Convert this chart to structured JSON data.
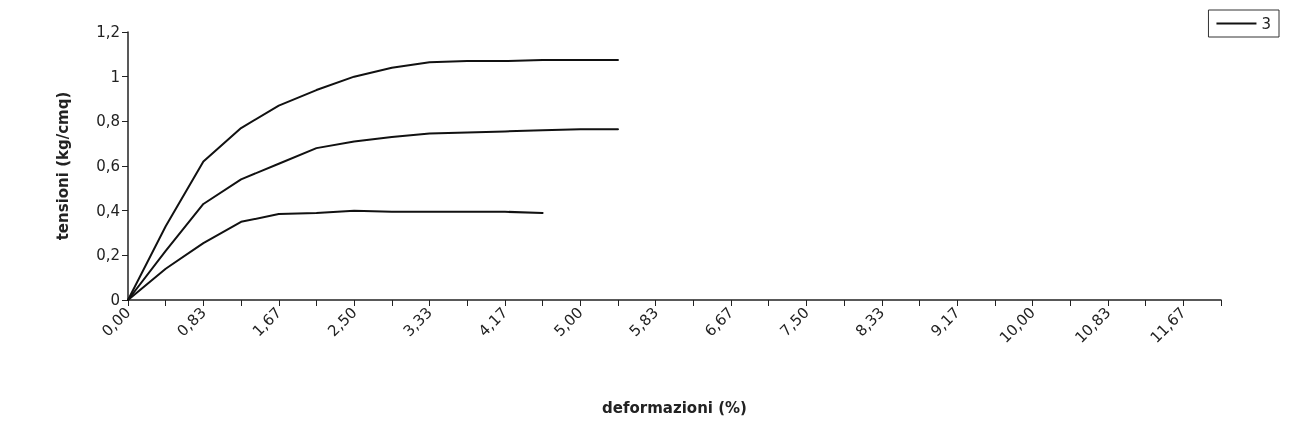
{
  "chart_data": {
    "type": "line",
    "xlabel": "deformazioni (%)",
    "ylabel": "tensioni (kg/cmq)",
    "categories": [
      "0,00",
      null,
      "0,83",
      null,
      "1,67",
      null,
      "2,50",
      null,
      "3,33",
      null,
      "4,17",
      null,
      "5,00",
      null,
      "5,83",
      null,
      "6,67",
      null,
      "7,50",
      null,
      "8,33",
      null,
      "9,17",
      null,
      "10,00",
      null,
      "10,83",
      null,
      "11,67",
      null
    ],
    "series": [
      {
        "name": "3",
        "color": "#111111",
        "values": [
          0,
          0.33,
          0.62,
          0.77,
          0.87,
          0.94,
          1.0,
          1.04,
          1.065,
          1.07,
          1.07,
          1.075,
          1.075,
          1.075,
          null,
          null,
          null,
          null,
          null,
          null,
          null,
          null,
          null,
          null,
          null,
          null,
          null,
          null,
          null,
          null
        ]
      },
      {
        "color": "#111111",
        "values": [
          0,
          0.22,
          0.43,
          0.54,
          0.61,
          0.68,
          0.71,
          0.73,
          0.745,
          0.75,
          0.755,
          0.76,
          0.765,
          0.765,
          null,
          null,
          null,
          null,
          null,
          null,
          null,
          null,
          null,
          null,
          null,
          null,
          null,
          null,
          null,
          null
        ]
      },
      {
        "color": "#111111",
        "values": [
          0,
          0.14,
          0.255,
          0.35,
          0.385,
          0.39,
          0.4,
          0.395,
          0.395,
          0.395,
          0.395,
          0.39,
          null,
          null,
          null,
          null,
          null,
          null,
          null,
          null,
          null,
          null,
          null,
          null,
          null,
          null,
          null,
          null,
          null,
          null
        ]
      }
    ],
    "ylim": [
      0,
      1.2
    ],
    "yticks": [
      0,
      {
        "value": 0.2,
        "label": "0,2"
      },
      {
        "value": 0.4,
        "label": "0,4"
      },
      {
        "value": 0.6,
        "label": "0,6"
      },
      {
        "value": 0.8,
        "label": "0,8"
      },
      1,
      {
        "value": 1.2,
        "label": "1,2"
      }
    ],
    "grid": false,
    "legend": "top right",
    "marker": "none",
    "line_style": "solid"
  }
}
